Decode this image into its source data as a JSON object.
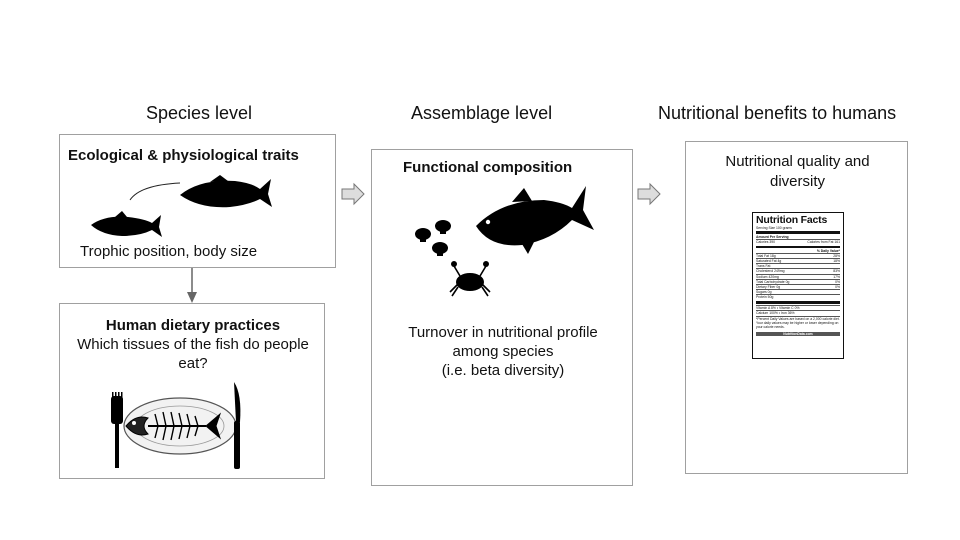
{
  "headings": {
    "species": "Species level",
    "assemblage": "Assemblage level",
    "nutrition": "Nutritional benefits to humans"
  },
  "traits_box": {
    "title": "Ecological & physiological traits",
    "caption": "Trophic position, body size"
  },
  "dietary_box": {
    "title": "Human dietary practices",
    "question": "Which tissues of the fish do people eat?"
  },
  "functional_box": {
    "title": "Functional composition",
    "turnover_line1": "Turnover in nutritional profile",
    "turnover_line2": "among species",
    "turnover_line3": "(i.e. beta diversity)"
  },
  "nutrition_box": {
    "title_line1": "Nutritional quality and",
    "title_line2": "diversity"
  },
  "nutrition_label": {
    "title": "Nutrition Facts",
    "serving": "Serving Size 100 grams",
    "amount": "Amount Per Serving",
    "calories": "Calories 390",
    "calories_fat": "Calories from Fat 161",
    "daily_value": "% Daily Value*",
    "rows": [
      {
        "name": "Total Fat 18g",
        "value": "28%"
      },
      {
        "name": "Saturated Fat 4g",
        "value": "18%"
      },
      {
        "name": "Trans Fat",
        "value": ""
      },
      {
        "name": "Cholesterol 249mg",
        "value": "83%"
      },
      {
        "name": "Sodium 420mg",
        "value": "17%"
      },
      {
        "name": "Total Carbohydrate 0g",
        "value": "0%"
      },
      {
        "name": "Dietary Fiber 0g",
        "value": "0%"
      },
      {
        "name": "Sugars 0g",
        "value": ""
      },
      {
        "name": "Protein 50g",
        "value": ""
      }
    ],
    "vitamin_row1": "Vitamin A 8% • Vitamin C 0%",
    "vitamin_row2": "Calcium 100% • Iron 36%",
    "footnote": "*Percent Daily Values are based on a 2,000 calorie diet. Your daily values may be higher or lower depending on your calorie needs.",
    "footer": "NutritionData.com"
  }
}
